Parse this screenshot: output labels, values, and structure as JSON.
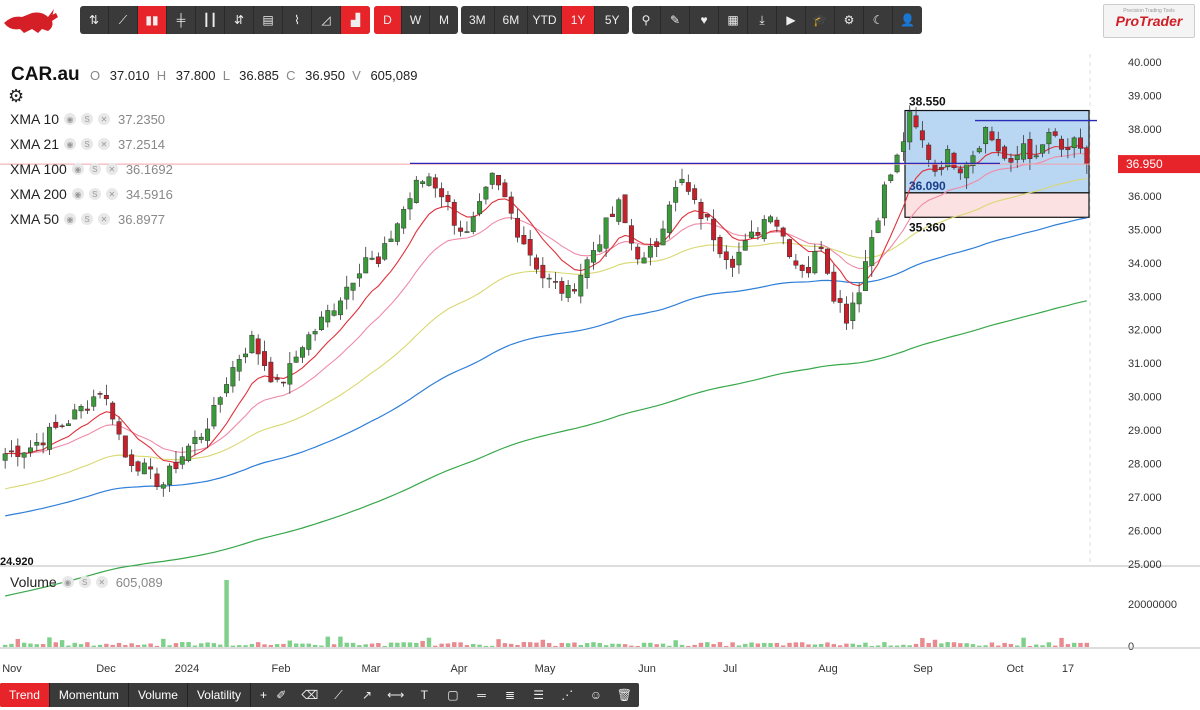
{
  "toolbar": {
    "chart_type_icons": [
      "hollow-candle-icon",
      "line-icon",
      "candle-icon",
      "ohlc-bar-icon",
      "hl-bar-icon",
      "heikin-ashi-icon",
      "renko-icon",
      "kagi-icon",
      "area-icon",
      "column-icon"
    ],
    "active_chart_type_index": 2,
    "interval_buttons": [
      "D",
      "W",
      "M"
    ],
    "active_interval": "D",
    "range_buttons": [
      "3M",
      "6M",
      "YTD",
      "1Y",
      "5Y"
    ],
    "active_range": "1Y",
    "tool_icons": [
      "search-icon",
      "magic-wand-icon",
      "heart-icon",
      "table-icon",
      "download-icon",
      "play-icon",
      "graduation-cap-icon",
      "settings-icon",
      "moon-icon",
      "user-icon"
    ],
    "brand": "ProTrader",
    "brand_tagline": "Precision Trading Tools"
  },
  "legend": {
    "symbol": "CAR.au",
    "open_label": "O",
    "open": "37.010",
    "high_label": "H",
    "high": "37.800",
    "low_label": "L",
    "low": "36.885",
    "close_label": "C",
    "close": "36.950",
    "volume_label": "V",
    "volume": "605,089"
  },
  "indicators": [
    {
      "name": "XMA 10",
      "value": "37.2350",
      "color": "#e0303a"
    },
    {
      "name": "XMA 21",
      "value": "37.2514",
      "color": "#f08aa6"
    },
    {
      "name": "XMA 100",
      "value": "36.1692",
      "color": "#2f7fd8"
    },
    {
      "name": "XMA 200",
      "value": "34.5916",
      "color": "#37a84a"
    },
    {
      "name": "XMA 50",
      "value": "36.8977",
      "color": "#d8d870"
    }
  ],
  "indicator_icons": [
    "eye-icon",
    "s-icon",
    "close-icon"
  ],
  "volume_panel": {
    "label": "Volume",
    "value": "605,089",
    "axis_labels": [
      "20000000",
      "0"
    ]
  },
  "bottom_tabs": [
    "Trend",
    "Momentum",
    "Volume",
    "Volatility",
    "+"
  ],
  "active_bottom_tab": "Trend",
  "drawing_tools": [
    "pencil-icon",
    "eraser-icon",
    "trend-line-icon",
    "arrow-icon",
    "measure-icon",
    "text-icon",
    "rectangle-icon",
    "horizontal-line-icon",
    "fib-icon",
    "channel-icon",
    "ray-icon",
    "emoji-icon",
    "trash-icon"
  ],
  "chart_data": {
    "type": "candlestick",
    "y_axis_ticks": [
      "40.000",
      "39.000",
      "38.000",
      "37.000",
      "36.000",
      "35.000",
      "34.000",
      "33.000",
      "32.000",
      "31.000",
      "30.000",
      "29.000",
      "28.000",
      "27.000",
      "26.000",
      "25.000"
    ],
    "ylim": [
      25,
      40.2
    ],
    "x_labels": [
      "Nov",
      "Dec",
      "2024",
      "Feb",
      "Mar",
      "Apr",
      "May",
      "Jun",
      "Jul",
      "Aug",
      "Sep",
      "Oct",
      "17"
    ],
    "last_price": "36.950",
    "last_price_color": "#e8242b",
    "low_marker": "24.920",
    "box": {
      "top": 38.55,
      "middle": 36.09,
      "bottom": 35.36,
      "top_label": "38.550",
      "middle_label": "36.090",
      "bottom_label": "35.360"
    },
    "resistance_line": 36.95,
    "upper_line": 38.25,
    "colors": {
      "up": "#3a9a3a",
      "down": "#c8202a",
      "box_fill": "#b9d6f2",
      "lower_fill": "#fbe1e1"
    },
    "price_path": [
      [
        0,
        28.3
      ],
      [
        4,
        28.5
      ],
      [
        7,
        28.9
      ],
      [
        10,
        29.3
      ],
      [
        13,
        29.8
      ],
      [
        15,
        30.2
      ],
      [
        17,
        29.5
      ],
      [
        19,
        28.2
      ],
      [
        21,
        28.0
      ],
      [
        23,
        27.6
      ],
      [
        25,
        27.4
      ],
      [
        27,
        28.0
      ],
      [
        29,
        28.5
      ],
      [
        31,
        28.9
      ],
      [
        33,
        29.5
      ],
      [
        35,
        30.5
      ],
      [
        37,
        31.2
      ],
      [
        39,
        31.7
      ],
      [
        41,
        31.0
      ],
      [
        43,
        30.3
      ],
      [
        45,
        30.8
      ],
      [
        47,
        31.6
      ],
      [
        49,
        32.0
      ],
      [
        51,
        32.5
      ],
      [
        53,
        33.0
      ],
      [
        55,
        33.6
      ],
      [
        57,
        34.2
      ],
      [
        59,
        33.9
      ],
      [
        61,
        34.8
      ],
      [
        63,
        35.6
      ],
      [
        65,
        36.3
      ],
      [
        67,
        36.6
      ],
      [
        69,
        36.1
      ],
      [
        71,
        35.3
      ],
      [
        73,
        34.8
      ],
      [
        75,
        35.6
      ],
      [
        77,
        36.5
      ],
      [
        79,
        35.9
      ],
      [
        81,
        35.0
      ],
      [
        83,
        34.3
      ],
      [
        85,
        33.6
      ],
      [
        87,
        33.3
      ],
      [
        89,
        33.1
      ],
      [
        91,
        33.7
      ],
      [
        93,
        34.4
      ],
      [
        95,
        35.1
      ],
      [
        97,
        35.7
      ],
      [
        99,
        34.6
      ],
      [
        101,
        34.0
      ],
      [
        103,
        34.6
      ],
      [
        105,
        35.9
      ],
      [
        107,
        36.4
      ],
      [
        109,
        35.7
      ],
      [
        111,
        35.2
      ],
      [
        113,
        34.5
      ],
      [
        115,
        34.1
      ],
      [
        117,
        34.5
      ],
      [
        119,
        35.0
      ],
      [
        121,
        35.6
      ],
      [
        123,
        34.8
      ],
      [
        125,
        34.0
      ],
      [
        127,
        33.8
      ],
      [
        129,
        34.6
      ],
      [
        131,
        33.1
      ],
      [
        133,
        32.4
      ],
      [
        135,
        33.3
      ],
      [
        137,
        34.8
      ],
      [
        139,
        36.2
      ],
      [
        141,
        37.1
      ],
      [
        143,
        38.3
      ],
      [
        145,
        37.6
      ],
      [
        147,
        36.8
      ],
      [
        149,
        37.2
      ],
      [
        151,
        36.9
      ],
      [
        153,
        37.3
      ],
      [
        155,
        38.0
      ],
      [
        157,
        37.4
      ],
      [
        159,
        36.8
      ],
      [
        161,
        37.6
      ],
      [
        163,
        37.0
      ],
      [
        165,
        37.9
      ],
      [
        167,
        37.3
      ],
      [
        169,
        37.5
      ],
      [
        171,
        36.95
      ]
    ],
    "volume_spike_index": 35
  }
}
